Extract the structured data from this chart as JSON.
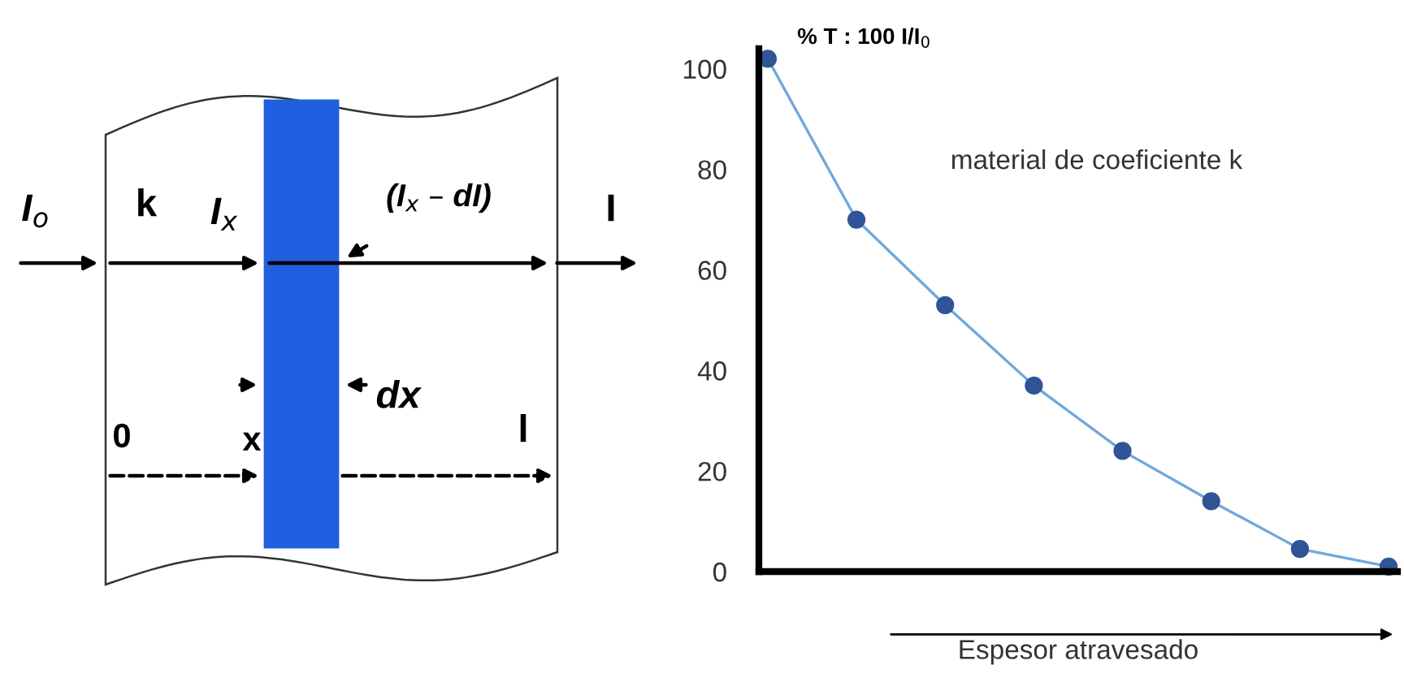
{
  "chart_data": {
    "type": "line",
    "title": "% T : 100 I/I$_{0}$",
    "xlabel": "Espesor atravesado",
    "categories": [
      null,
      null,
      null,
      null,
      null,
      null,
      null,
      null
    ],
    "series": [
      {
        "color": "#2f5597",
        "values": [
          102,
          70,
          53,
          37,
          24,
          14,
          4.5,
          1
        ]
      }
    ],
    "ylim": [
      0,
      104
    ],
    "yticks": [
      0,
      20,
      40,
      60,
      80,
      100
    ],
    "marker": "circle",
    "line_style": "solid",
    "grid": false,
    "annotations": [
      "material de coeficiente k",
      "I$_{o}$",
      "k",
      "I$_{x}$",
      "(I$_{x}$ – dI)",
      "I",
      "dx",
      "0",
      "x",
      "l"
    ]
  }
}
